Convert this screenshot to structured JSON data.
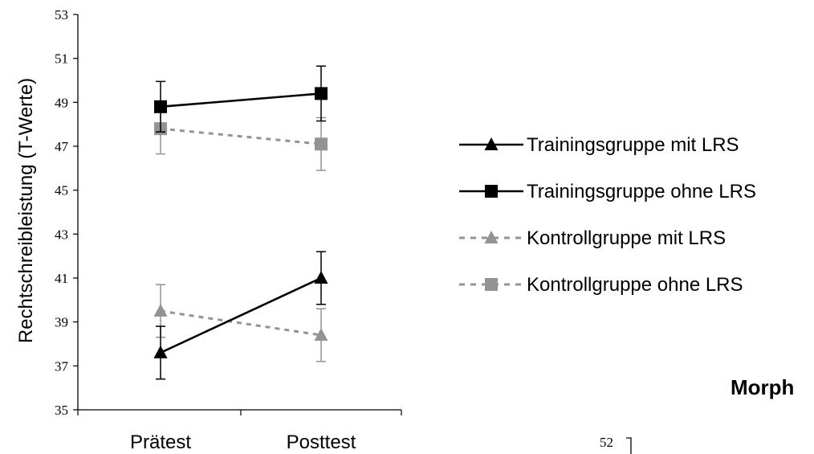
{
  "chart_data": {
    "type": "line",
    "ylabel": "Rechtschreibleistung (T-Werte)",
    "xlabel": "",
    "categories": [
      "Prätest",
      "Posttest"
    ],
    "ylim": [
      35,
      53
    ],
    "yticks": [
      "35",
      "37",
      "39",
      "41",
      "43",
      "45",
      "47",
      "49",
      "51",
      "53"
    ],
    "grid": false,
    "legend_position": "right",
    "series": [
      {
        "name": "Trainingsgruppe mit LRS",
        "values": [
          37.6,
          41.0
        ],
        "errors": [
          1.2,
          1.2
        ],
        "color": "#000000",
        "marker": "triangle",
        "dash": false
      },
      {
        "name": "Trainingsgruppe ohne LRS",
        "values": [
          48.8,
          49.4
        ],
        "errors": [
          1.15,
          1.25
        ],
        "color": "#000000",
        "marker": "square",
        "dash": false
      },
      {
        "name": "Kontrollgruppe mit LRS",
        "values": [
          39.5,
          38.4
        ],
        "errors": [
          1.2,
          1.2
        ],
        "color": "#939393",
        "marker": "triangle",
        "dash": true
      },
      {
        "name": "Kontrollgruppe ohne LRS",
        "values": [
          47.8,
          47.1
        ],
        "errors": [
          1.15,
          1.2
        ],
        "color": "#939393",
        "marker": "square",
        "dash": true
      }
    ]
  },
  "fragments": {
    "title_partial": "Morph",
    "next_chart_tick": "52"
  }
}
